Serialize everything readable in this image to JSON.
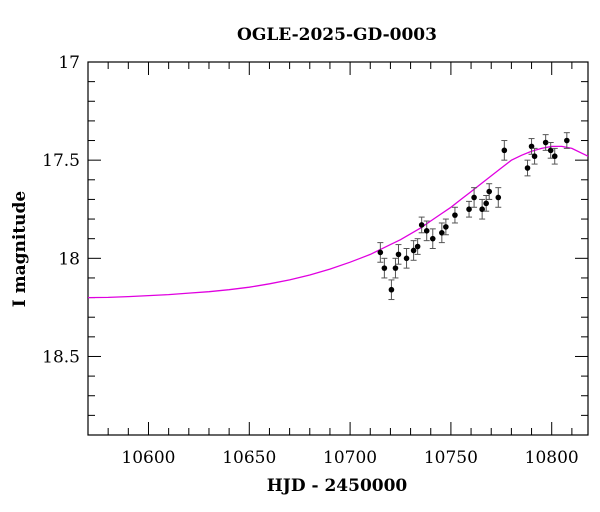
{
  "chart_data": {
    "type": "scatter",
    "title": "OGLE-2025-GD-0003",
    "xlabel": "HJD - 2450000",
    "ylabel": "I magnitude",
    "xlim": [
      10570,
      10818
    ],
    "ylim": [
      18.9,
      17.0
    ],
    "y_inverted": true,
    "x_ticks": [
      10600,
      10650,
      10700,
      10750,
      10800
    ],
    "x_tick_labels": [
      "10600",
      "10650",
      "10700",
      "10750",
      "10800"
    ],
    "x_minor_step": 10,
    "y_ticks": [
      17.0,
      17.5,
      18.0,
      18.5
    ],
    "y_tick_labels": [
      "17",
      "17.5",
      "18",
      "18.5"
    ],
    "y_minor_step": 0.1,
    "grid": false,
    "legend": "none",
    "colors": {
      "model": "#e000e0",
      "points": "#000000",
      "errorbars": "#555555"
    },
    "series": [
      {
        "kind": "points",
        "x": [
          10715.0,
          10717.0,
          10720.5,
          10722.5,
          10724.0,
          10728.0,
          10731.5,
          10733.5,
          10735.5,
          10738.0,
          10741.0,
          10745.5,
          10747.5,
          10752.0,
          10759.0,
          10761.5,
          10765.5,
          10767.5,
          10769.0,
          10773.5,
          10776.5,
          10788.0,
          10790.0,
          10791.5,
          10797.0,
          10799.5,
          10801.5,
          10807.5
        ],
        "y": [
          17.97,
          18.05,
          18.16,
          18.05,
          17.98,
          18.0,
          17.96,
          17.94,
          17.83,
          17.86,
          17.9,
          17.87,
          17.84,
          17.78,
          17.75,
          17.69,
          17.75,
          17.72,
          17.66,
          17.69,
          17.45,
          17.54,
          17.43,
          17.48,
          17.41,
          17.45,
          17.48,
          17.4
        ],
        "err": [
          0.05,
          0.05,
          0.05,
          0.05,
          0.05,
          0.05,
          0.05,
          0.04,
          0.04,
          0.05,
          0.05,
          0.05,
          0.04,
          0.04,
          0.04,
          0.05,
          0.05,
          0.04,
          0.04,
          0.05,
          0.05,
          0.04,
          0.04,
          0.04,
          0.04,
          0.04,
          0.04,
          0.04
        ]
      },
      {
        "kind": "model-curve",
        "x": [
          10570,
          10580,
          10590,
          10600,
          10610,
          10620,
          10630,
          10640,
          10650,
          10660,
          10670,
          10680,
          10690,
          10700,
          10705,
          10710,
          10715,
          10720,
          10725,
          10730,
          10735,
          10740,
          10745,
          10750,
          10755,
          10760,
          10765,
          10770,
          10775,
          10780,
          10785,
          10790,
          10795,
          10800,
          10805,
          10810,
          10815,
          10818
        ],
        "y": [
          18.2,
          18.199,
          18.195,
          18.19,
          18.185,
          18.177,
          18.17,
          18.16,
          18.147,
          18.13,
          18.11,
          18.085,
          18.055,
          18.02,
          18.0,
          17.98,
          17.955,
          17.93,
          17.905,
          17.875,
          17.845,
          17.81,
          17.775,
          17.74,
          17.7,
          17.66,
          17.62,
          17.58,
          17.54,
          17.5,
          17.475,
          17.455,
          17.44,
          17.43,
          17.43,
          17.44,
          17.465,
          17.48
        ]
      }
    ]
  }
}
